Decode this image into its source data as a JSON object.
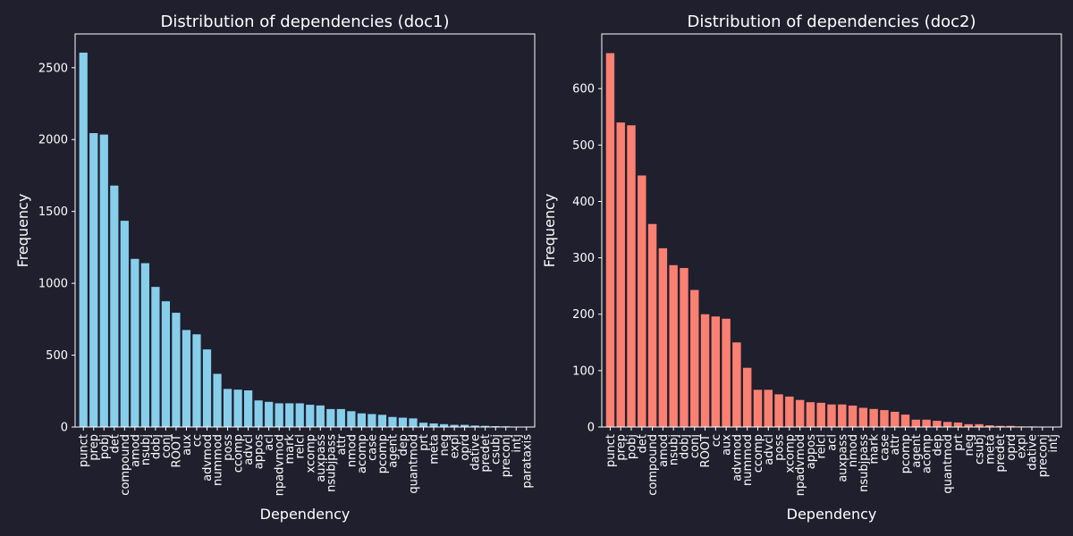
{
  "colors": {
    "background": "#1f1f2e",
    "text": "#ffffff",
    "axis": "#ffffff"
  },
  "chart_data": [
    {
      "type": "bar",
      "title": "Distribution of dependencies (doc1)",
      "xlabel": "Dependency",
      "ylabel": "Frequency",
      "color": "#87ceeb",
      "ylim": [
        0,
        2735
      ],
      "yticks": [
        0,
        500,
        1000,
        1500,
        2000,
        2500
      ],
      "categories": [
        "punct",
        "prep",
        "pobj",
        "det",
        "compound",
        "amod",
        "nsubj",
        "dobj",
        "conj",
        "ROOT",
        "aux",
        "cc",
        "advmod",
        "nummod",
        "poss",
        "ccomp",
        "advcl",
        "appos",
        "acl",
        "npadvmod",
        "mark",
        "relcl",
        "xcomp",
        "auxpass",
        "nsubjpass",
        "attr",
        "nmod",
        "acomp",
        "case",
        "pcomp",
        "agent",
        "dep",
        "quantmod",
        "prt",
        "meta",
        "neg",
        "expl",
        "oprd",
        "dative",
        "predet",
        "csubj",
        "preconj",
        "intj",
        "parataxis"
      ],
      "values": [
        2605,
        2045,
        2035,
        1680,
        1435,
        1170,
        1140,
        975,
        875,
        795,
        675,
        645,
        540,
        370,
        265,
        260,
        255,
        185,
        175,
        165,
        165,
        165,
        155,
        150,
        125,
        125,
        110,
        95,
        90,
        85,
        70,
        65,
        60,
        30,
        25,
        20,
        15,
        15,
        10,
        8,
        6,
        5,
        3,
        2
      ]
    },
    {
      "type": "bar",
      "title": "Distribution of dependencies (doc2)",
      "xlabel": "Dependency",
      "ylabel": "Frequency",
      "color": "#fa8072",
      "ylim": [
        0,
        697
      ],
      "yticks": [
        0,
        100,
        200,
        300,
        400,
        500,
        600
      ],
      "categories": [
        "punct",
        "prep",
        "pobj",
        "det",
        "compound",
        "amod",
        "nsubj",
        "dobj",
        "conj",
        "ROOT",
        "cc",
        "aux",
        "advmod",
        "nummod",
        "ccomp",
        "advcl",
        "poss",
        "xcomp",
        "npadvmod",
        "appos",
        "relcl",
        "acl",
        "auxpass",
        "nmod",
        "nsubjpass",
        "mark",
        "case",
        "attr",
        "pcomp",
        "agent",
        "acomp",
        "dep",
        "quantmod",
        "prt",
        "neg",
        "csubj",
        "meta",
        "predet",
        "oprd",
        "expl",
        "dative",
        "preconj",
        "intj"
      ],
      "values": [
        663,
        540,
        535,
        446,
        360,
        317,
        287,
        282,
        243,
        200,
        196,
        192,
        150,
        105,
        66,
        66,
        58,
        54,
        48,
        44,
        43,
        40,
        40,
        38,
        34,
        32,
        30,
        27,
        22,
        13,
        13,
        11,
        9,
        8,
        5,
        5,
        3,
        2,
        2,
        1,
        1,
        0,
        0
      ]
    }
  ]
}
